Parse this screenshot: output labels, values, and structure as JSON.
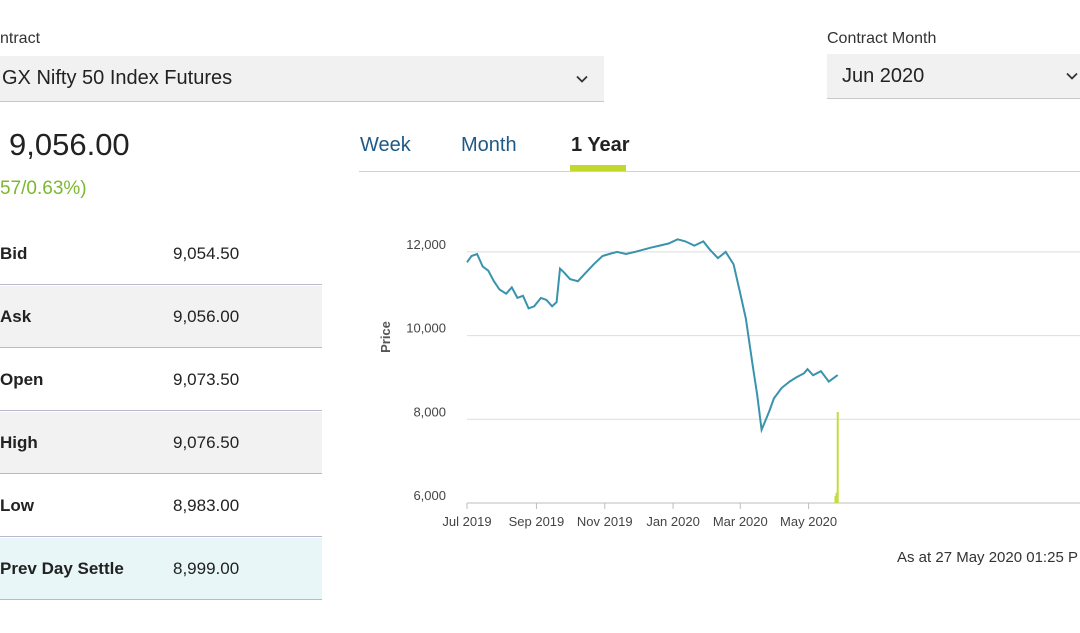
{
  "contract": {
    "label": "ntract",
    "value": "GX Nifty 50 Index Futures"
  },
  "contract_month": {
    "label": "Contract Month",
    "value": "Jun 2020"
  },
  "price": {
    "last": "9,056.00",
    "change": "57/0.63%)"
  },
  "quote_rows": [
    {
      "key": "Bid",
      "value": "9,054.50"
    },
    {
      "key": "Ask",
      "value": "9,056.00"
    },
    {
      "key": "Open",
      "value": "9,073.50"
    },
    {
      "key": "High",
      "value": "9,076.50"
    },
    {
      "key": "Low",
      "value": "8,983.00"
    },
    {
      "key": "Prev Day Settle",
      "value": "8,999.00"
    }
  ],
  "tabs": [
    {
      "label": "Week"
    },
    {
      "label": "Month"
    },
    {
      "label": "1 Year"
    }
  ],
  "active_tab": "1 Year",
  "as_at": "As at 27 May 2020 01:25 P",
  "colors": {
    "line": "#3a93ad",
    "volume": "#c6dc3b",
    "positive": "#7cb82f",
    "tab_link": "#1d5a87",
    "tab_underline": "#c2d82b"
  },
  "chart_data": {
    "type": "line",
    "ylabel": "Price",
    "ylim": [
      6000,
      13000
    ],
    "yticks": [
      6000,
      8000,
      10000,
      12000
    ],
    "ytick_labels": [
      "6,000",
      "8,000",
      "10,000",
      "12,000"
    ],
    "xticks": [
      "Jul 2019",
      "Sep 2019",
      "Nov 2019",
      "Jan 2020",
      "Mar 2020",
      "May 2020"
    ],
    "grid": "horizontal",
    "series": [
      {
        "x": [
          "2019-07-01",
          "2019-07-05",
          "2019-07-10",
          "2019-07-15",
          "2019-07-20",
          "2019-07-25",
          "2019-07-30",
          "2019-08-05",
          "2019-08-10",
          "2019-08-15",
          "2019-08-20",
          "2019-08-25",
          "2019-08-30",
          "2019-09-05",
          "2019-09-10",
          "2019-09-15",
          "2019-09-19",
          "2019-09-22",
          "2019-09-26",
          "2019-10-01",
          "2019-10-08",
          "2019-10-15",
          "2019-10-22",
          "2019-10-30",
          "2019-11-05",
          "2019-11-12",
          "2019-11-20",
          "2019-11-28",
          "2019-12-05",
          "2019-12-12",
          "2019-12-20",
          "2019-12-28",
          "2020-01-05",
          "2020-01-12",
          "2020-01-20",
          "2020-01-28",
          "2020-02-03",
          "2020-02-10",
          "2020-02-17",
          "2020-02-24",
          "2020-03-01",
          "2020-03-06",
          "2020-03-12",
          "2020-03-16",
          "2020-03-20",
          "2020-03-24",
          "2020-03-27",
          "2020-03-31",
          "2020-04-07",
          "2020-04-14",
          "2020-04-20",
          "2020-04-27",
          "2020-04-30",
          "2020-05-05",
          "2020-05-12",
          "2020-05-19",
          "2020-05-27"
        ],
        "y": [
          11750,
          11900,
          11950,
          11650,
          11550,
          11300,
          11100,
          11000,
          11150,
          10900,
          10950,
          10650,
          10700,
          10900,
          10850,
          10700,
          10800,
          11600,
          11500,
          11350,
          11300,
          11500,
          11700,
          11900,
          11950,
          12000,
          11950,
          12000,
          12050,
          12100,
          12150,
          12200,
          12300,
          12250,
          12150,
          12250,
          12050,
          11850,
          12000,
          11700,
          11000,
          10400,
          9300,
          8600,
          7750,
          8000,
          8200,
          8500,
          8750,
          8900,
          9000,
          9100,
          9200,
          9050,
          9150,
          8900,
          9056
        ]
      }
    ],
    "volume": [
      {
        "x": "2020-05-25",
        "value": 180
      },
      {
        "x": "2020-05-26",
        "value": 260
      },
      {
        "x": "2020-05-27",
        "value": 2300
      }
    ]
  }
}
